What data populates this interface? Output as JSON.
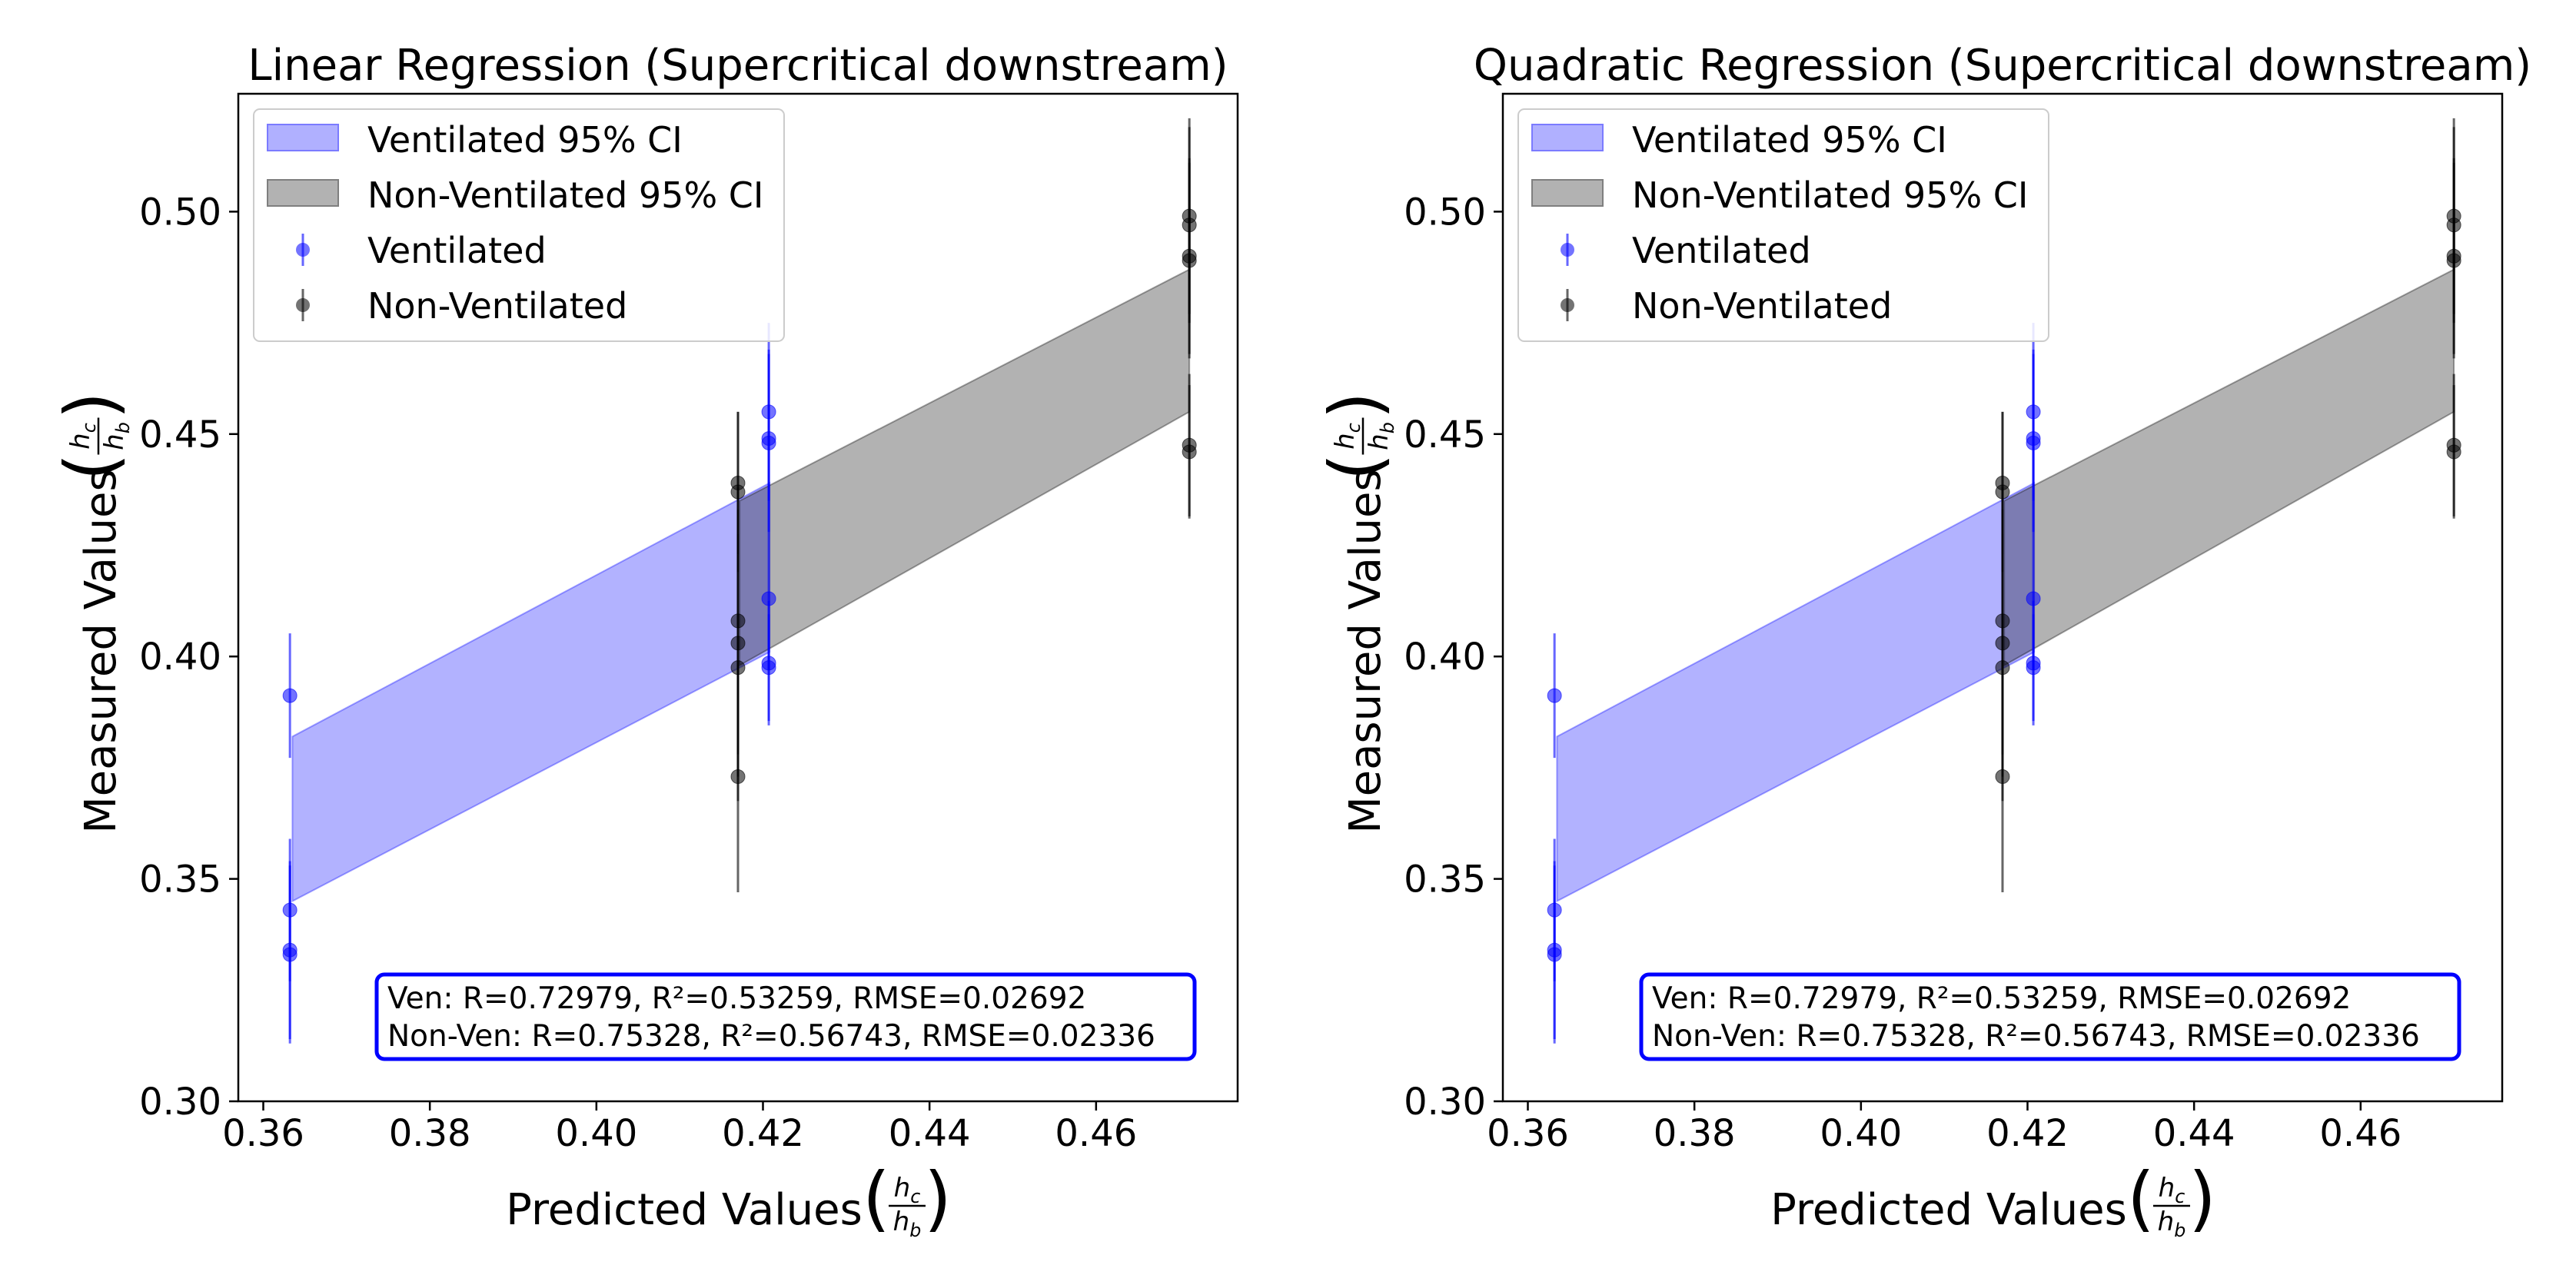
{
  "chart_data": [
    {
      "type": "scatter",
      "title": "Linear Regression (Supercritical downstream)",
      "xlabel": "Predicted Values",
      "ylabel": "Measured Values",
      "label_fraction": {
        "numerator": "h",
        "numerator_sub": "c",
        "denominator": "h",
        "denominator_sub": "b"
      },
      "xlim": [
        0.357,
        0.477
      ],
      "ylim": [
        0.3,
        0.5265
      ],
      "xticks": [
        0.36,
        0.38,
        0.4,
        0.42,
        0.44,
        0.46
      ],
      "xtick_labels": [
        "0.36",
        "0.38",
        "0.40",
        "0.42",
        "0.44",
        "0.46"
      ],
      "yticks": [
        0.3,
        0.35,
        0.4,
        0.45,
        0.5
      ],
      "ytick_labels": [
        "0.30",
        "0.35",
        "0.40",
        "0.45",
        "0.50"
      ],
      "legend": {
        "position": "upper-left",
        "entries": [
          {
            "label": "Ventilated 95% CI",
            "kind": "band",
            "color": "#7b7bff"
          },
          {
            "label": "Non-Ventilated 95% CI",
            "kind": "band",
            "color": "#7f7f7f"
          },
          {
            "label": "Ventilated",
            "kind": "point",
            "color": "#0000ff"
          },
          {
            "label": "Non-Ventilated",
            "kind": "point",
            "color": "#000000"
          }
        ]
      },
      "bands": [
        {
          "name": "Ventilated 95% CI",
          "color": "#0000ff",
          "x": [
            0.3635,
            0.4208
          ],
          "lower": [
            0.345,
            0.401
          ],
          "upper": [
            0.382,
            0.439
          ]
        },
        {
          "name": "Non-Ventilated 95% CI",
          "color": "#000000",
          "x": [
            0.4172,
            0.4712
          ],
          "lower": [
            0.398,
            0.455
          ],
          "upper": [
            0.435,
            0.487
          ]
        }
      ],
      "series": [
        {
          "name": "Ventilated",
          "color": "#0000ff",
          "points": [
            {
              "x": 0.3632,
              "y": 0.3912,
              "err": 0.014
            },
            {
              "x": 0.3632,
              "y": 0.343,
              "err": 0.016
            },
            {
              "x": 0.3632,
              "y": 0.334,
              "err": 0.02
            },
            {
              "x": 0.3632,
              "y": 0.333,
              "err": 0.02
            },
            {
              "x": 0.4207,
              "y": 0.455,
              "err": 0.02
            },
            {
              "x": 0.4207,
              "y": 0.449,
              "err": 0.02
            },
            {
              "x": 0.4207,
              "y": 0.448,
              "err": 0.02
            },
            {
              "x": 0.4207,
              "y": 0.413,
              "err": 0.016
            },
            {
              "x": 0.4207,
              "y": 0.3985,
              "err": 0.014
            },
            {
              "x": 0.4207,
              "y": 0.3975,
              "err": 0.012
            }
          ]
        },
        {
          "name": "Non-Ventilated",
          "color": "#000000",
          "points": [
            {
              "x": 0.417,
              "y": 0.439,
              "err": 0.016
            },
            {
              "x": 0.417,
              "y": 0.437,
              "err": 0.018
            },
            {
              "x": 0.417,
              "y": 0.408,
              "err": 0.03
            },
            {
              "x": 0.417,
              "y": 0.403,
              "err": 0.03
            },
            {
              "x": 0.417,
              "y": 0.3975,
              "err": 0.03
            },
            {
              "x": 0.417,
              "y": 0.373,
              "err": 0.026
            },
            {
              "x": 0.4712,
              "y": 0.499,
              "err": 0.022
            },
            {
              "x": 0.4712,
              "y": 0.497,
              "err": 0.022
            },
            {
              "x": 0.4712,
              "y": 0.49,
              "err": 0.022
            },
            {
              "x": 0.4712,
              "y": 0.489,
              "err": 0.022
            },
            {
              "x": 0.4712,
              "y": 0.4475,
              "err": 0.016
            },
            {
              "x": 0.4712,
              "y": 0.446,
              "err": 0.015
            }
          ]
        }
      ],
      "annotation": {
        "line1": "Ven: R=0.72979, R²=0.53259, RMSE=0.02692",
        "line2": "Non-Ven: R=0.75328, R²=0.56743, RMSE=0.02336",
        "border_color": "#0000ff",
        "position": "lower-right"
      }
    },
    {
      "type": "scatter",
      "title": "Quadratic Regression (Supercritical downstream)",
      "xlabel": "Predicted Values",
      "ylabel": "Measured Values",
      "label_fraction": {
        "numerator": "h",
        "numerator_sub": "c",
        "denominator": "h",
        "denominator_sub": "b"
      },
      "xlim": [
        0.357,
        0.477
      ],
      "ylim": [
        0.3,
        0.5265
      ],
      "xticks": [
        0.36,
        0.38,
        0.4,
        0.42,
        0.44,
        0.46
      ],
      "xtick_labels": [
        "0.36",
        "0.38",
        "0.40",
        "0.42",
        "0.44",
        "0.46"
      ],
      "yticks": [
        0.3,
        0.35,
        0.4,
        0.45,
        0.5
      ],
      "ytick_labels": [
        "0.30",
        "0.35",
        "0.40",
        "0.45",
        "0.50"
      ],
      "legend": {
        "position": "upper-left",
        "entries": [
          {
            "label": "Ventilated 95% CI",
            "kind": "band",
            "color": "#7b7bff"
          },
          {
            "label": "Non-Ventilated 95% CI",
            "kind": "band",
            "color": "#7f7f7f"
          },
          {
            "label": "Ventilated",
            "kind": "point",
            "color": "#0000ff"
          },
          {
            "label": "Non-Ventilated",
            "kind": "point",
            "color": "#000000"
          }
        ]
      },
      "bands": [
        {
          "name": "Ventilated 95% CI",
          "color": "#0000ff",
          "x": [
            0.3635,
            0.4208
          ],
          "lower": [
            0.345,
            0.401
          ],
          "upper": [
            0.382,
            0.439
          ]
        },
        {
          "name": "Non-Ventilated 95% CI",
          "color": "#000000",
          "x": [
            0.4172,
            0.4712
          ],
          "lower": [
            0.398,
            0.455
          ],
          "upper": [
            0.435,
            0.487
          ]
        }
      ],
      "series": [
        {
          "name": "Ventilated",
          "color": "#0000ff",
          "points": [
            {
              "x": 0.3632,
              "y": 0.3912,
              "err": 0.014
            },
            {
              "x": 0.3632,
              "y": 0.343,
              "err": 0.016
            },
            {
              "x": 0.3632,
              "y": 0.334,
              "err": 0.02
            },
            {
              "x": 0.3632,
              "y": 0.333,
              "err": 0.02
            },
            {
              "x": 0.4207,
              "y": 0.455,
              "err": 0.02
            },
            {
              "x": 0.4207,
              "y": 0.449,
              "err": 0.02
            },
            {
              "x": 0.4207,
              "y": 0.448,
              "err": 0.02
            },
            {
              "x": 0.4207,
              "y": 0.413,
              "err": 0.016
            },
            {
              "x": 0.4207,
              "y": 0.3985,
              "err": 0.014
            },
            {
              "x": 0.4207,
              "y": 0.3975,
              "err": 0.012
            }
          ]
        },
        {
          "name": "Non-Ventilated",
          "color": "#000000",
          "points": [
            {
              "x": 0.417,
              "y": 0.439,
              "err": 0.016
            },
            {
              "x": 0.417,
              "y": 0.437,
              "err": 0.018
            },
            {
              "x": 0.417,
              "y": 0.408,
              "err": 0.03
            },
            {
              "x": 0.417,
              "y": 0.403,
              "err": 0.03
            },
            {
              "x": 0.417,
              "y": 0.3975,
              "err": 0.03
            },
            {
              "x": 0.417,
              "y": 0.373,
              "err": 0.026
            },
            {
              "x": 0.4712,
              "y": 0.499,
              "err": 0.022
            },
            {
              "x": 0.4712,
              "y": 0.497,
              "err": 0.022
            },
            {
              "x": 0.4712,
              "y": 0.49,
              "err": 0.022
            },
            {
              "x": 0.4712,
              "y": 0.489,
              "err": 0.022
            },
            {
              "x": 0.4712,
              "y": 0.4475,
              "err": 0.016
            },
            {
              "x": 0.4712,
              "y": 0.446,
              "err": 0.015
            }
          ]
        }
      ],
      "annotation": {
        "line1": "Ven: R=0.72979, R²=0.53259, RMSE=0.02692",
        "line2": "Non-Ven: R=0.75328, R²=0.56743, RMSE=0.02336",
        "border_color": "#0000ff",
        "position": "lower-right"
      }
    }
  ]
}
